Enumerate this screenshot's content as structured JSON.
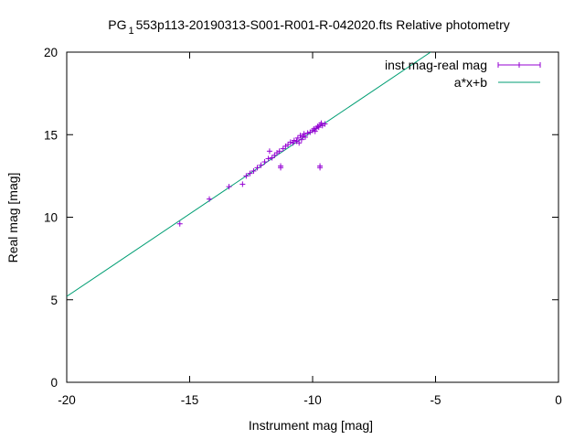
{
  "chart_data": {
    "type": "scatter",
    "title": "PG1553p113-20190313-S001-R001-R-042020.fts Relative photometry",
    "title_parts": {
      "prefix": "PG",
      "subscript": "1",
      "rest": "553p113-20190313-S001-R001-R-042020.fts Relative photometry"
    },
    "xlabel": "Instrument mag [mag]",
    "ylabel": "Real mag [mag]",
    "xlim": [
      -20,
      0
    ],
    "ylim": [
      0,
      20
    ],
    "x_ticks": [
      -20,
      -15,
      -10,
      -5,
      0
    ],
    "y_ticks": [
      0,
      5,
      10,
      15,
      20
    ],
    "grid": false,
    "legend_position": "top-right",
    "series": [
      {
        "name": "inst mag-real mag",
        "kind": "points",
        "color": "#9400d3",
        "points": [
          [
            -15.4,
            9.6
          ],
          [
            -14.2,
            11.1
          ],
          [
            -13.4,
            11.85
          ],
          [
            -12.85,
            12.0
          ],
          [
            -12.7,
            12.5
          ],
          [
            -12.55,
            12.65
          ],
          [
            -12.4,
            12.8
          ],
          [
            -12.25,
            13.0
          ],
          [
            -12.1,
            13.15
          ],
          [
            -11.95,
            13.35
          ],
          [
            -11.8,
            13.55
          ],
          [
            -11.75,
            14.0
          ],
          [
            -11.65,
            13.6
          ],
          [
            -11.55,
            13.75
          ],
          [
            -11.45,
            13.9
          ],
          [
            -11.35,
            14.0
          ],
          [
            -11.3,
            13.0
          ],
          [
            -11.3,
            13.1
          ],
          [
            -11.2,
            14.15
          ],
          [
            -11.1,
            14.3
          ],
          [
            -11.0,
            14.4
          ],
          [
            -10.9,
            14.55
          ],
          [
            -10.8,
            14.5
          ],
          [
            -10.75,
            14.65
          ],
          [
            -10.65,
            14.6
          ],
          [
            -10.6,
            14.8
          ],
          [
            -10.55,
            14.5
          ],
          [
            -10.5,
            14.95
          ],
          [
            -10.45,
            14.7
          ],
          [
            -10.4,
            14.9
          ],
          [
            -10.35,
            15.05
          ],
          [
            -10.3,
            14.85
          ],
          [
            -10.2,
            15.1
          ],
          [
            -10.1,
            15.15
          ],
          [
            -10.0,
            15.25
          ],
          [
            -9.95,
            15.35
          ],
          [
            -9.9,
            15.2
          ],
          [
            -9.85,
            15.4
          ],
          [
            -9.8,
            15.5
          ],
          [
            -9.75,
            15.45
          ],
          [
            -9.7,
            15.6
          ],
          [
            -9.65,
            15.7
          ],
          [
            -9.6,
            15.55
          ],
          [
            -9.5,
            15.65
          ],
          [
            -9.7,
            13.0
          ],
          [
            -9.7,
            13.1
          ]
        ]
      },
      {
        "name": "a*x+b",
        "kind": "line",
        "color": "#009e73",
        "slope": 1.0,
        "intercept": 25.2
      }
    ]
  }
}
